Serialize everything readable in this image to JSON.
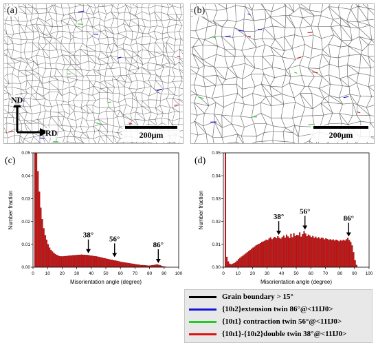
{
  "panels": {
    "a": {
      "label": "(a)",
      "scale": "200μm",
      "axis_nd": "ND",
      "axis_rd": "RD"
    },
    "b": {
      "label": "(b)",
      "scale": "200μm"
    },
    "c": {
      "label": "(c)"
    },
    "d": {
      "label": "(d)"
    }
  },
  "legend": {
    "items": [
      {
        "text": "Grain boundary > 15°",
        "color": "#000000"
      },
      {
        "text": "{10ı2}extension twin 86°@<11Ĳ0>",
        "color": "#1414d8"
      },
      {
        "text": "{10ı1} contraction twin 56°@<11Ĳ0>",
        "color": "#22cc22"
      },
      {
        "text": "{10ı1}-{10ı2}double twin 38°@<11Ĳ0>",
        "color": "#dd1111"
      }
    ]
  },
  "chart_data": [
    {
      "type": "bar",
      "panel": "(c)",
      "xlabel": "Misorientation angle (degree)",
      "ylabel": "Number fraction",
      "xlim": [
        0,
        100
      ],
      "ylim": [
        0,
        0.05
      ],
      "xticks": [
        0,
        10,
        20,
        30,
        40,
        50,
        60,
        70,
        80,
        90,
        100
      ],
      "yticks": [
        0.0,
        0.01,
        0.02,
        0.03,
        0.04,
        0.05
      ],
      "bar_color": "#cc1111",
      "annotations": [
        {
          "text": "38°",
          "x": 38,
          "y": 0.0055
        },
        {
          "text": "56°",
          "x": 56,
          "y": 0.0038
        },
        {
          "text": "86°",
          "x": 86,
          "y": 0.0012
        }
      ],
      "x": [
        2,
        3,
        4,
        5,
        6,
        7,
        8,
        9,
        10,
        11,
        12,
        13,
        14,
        15,
        16,
        17,
        18,
        19,
        20,
        21,
        22,
        23,
        24,
        25,
        26,
        27,
        28,
        29,
        30,
        31,
        32,
        33,
        34,
        35,
        36,
        37,
        38,
        39,
        40,
        41,
        42,
        43,
        44,
        45,
        46,
        47,
        48,
        49,
        50,
        51,
        52,
        53,
        54,
        55,
        56,
        57,
        58,
        59,
        60,
        61,
        62,
        63,
        64,
        65,
        66,
        67,
        68,
        69,
        70,
        71,
        72,
        73,
        74,
        75,
        76,
        77,
        78,
        79,
        80,
        81,
        82,
        83,
        84,
        85,
        86,
        87,
        88,
        89,
        90,
        91,
        92
      ],
      "values": [
        0.05,
        0.05,
        0.042,
        0.033,
        0.026,
        0.021,
        0.017,
        0.014,
        0.012,
        0.01,
        0.0085,
        0.0075,
        0.0068,
        0.0062,
        0.0057,
        0.0053,
        0.005,
        0.0048,
        0.0047,
        0.0047,
        0.0048,
        0.0048,
        0.0049,
        0.005,
        0.0051,
        0.0051,
        0.0052,
        0.0052,
        0.0053,
        0.0053,
        0.0054,
        0.0054,
        0.0055,
        0.0054,
        0.0054,
        0.0053,
        0.0053,
        0.0052,
        0.0051,
        0.005,
        0.0049,
        0.0048,
        0.0047,
        0.0046,
        0.0045,
        0.0043,
        0.0042,
        0.004,
        0.0039,
        0.0037,
        0.0036,
        0.0034,
        0.0033,
        0.0032,
        0.003,
        0.0029,
        0.0028,
        0.0026,
        0.0025,
        0.0023,
        0.0022,
        0.0021,
        0.002,
        0.0019,
        0.0018,
        0.0017,
        0.0016,
        0.0015,
        0.0014,
        0.0013,
        0.0012,
        0.0011,
        0.001,
        0.0009,
        0.0009,
        0.0008,
        0.0008,
        0.0007,
        0.0007,
        0.0007,
        0.0008,
        0.0009,
        0.001,
        0.0011,
        0.0012,
        0.001,
        0.0008,
        0.0005,
        0.0003,
        0.0002,
        0.0001
      ]
    },
    {
      "type": "bar",
      "panel": "(d)",
      "xlabel": "Misorientation angle (degree)",
      "ylabel": "Number fraction",
      "xlim": [
        0,
        100
      ],
      "ylim": [
        0,
        0.05
      ],
      "xticks": [
        0,
        10,
        20,
        30,
        40,
        50,
        60,
        70,
        80,
        90,
        100
      ],
      "yticks": [
        0.0,
        0.01,
        0.02,
        0.03,
        0.04,
        0.05
      ],
      "bar_color": "#cc1111",
      "annotations": [
        {
          "text": "38°",
          "x": 38,
          "y": 0.0135
        },
        {
          "text": "56°",
          "x": 56,
          "y": 0.0158
        },
        {
          "text": "86°",
          "x": 86,
          "y": 0.0128
        }
      ],
      "x": [
        2,
        3,
        4,
        5,
        6,
        7,
        8,
        9,
        10,
        11,
        12,
        13,
        14,
        15,
        16,
        17,
        18,
        19,
        20,
        21,
        22,
        23,
        24,
        25,
        26,
        27,
        28,
        29,
        30,
        31,
        32,
        33,
        34,
        35,
        36,
        37,
        38,
        39,
        40,
        41,
        42,
        43,
        44,
        45,
        46,
        47,
        48,
        49,
        50,
        51,
        52,
        53,
        54,
        55,
        56,
        57,
        58,
        59,
        60,
        61,
        62,
        63,
        64,
        65,
        66,
        67,
        68,
        69,
        70,
        71,
        72,
        73,
        74,
        75,
        76,
        77,
        78,
        79,
        80,
        81,
        82,
        83,
        84,
        85,
        86,
        87,
        88,
        89,
        90,
        91,
        92
      ],
      "values": [
        0.05,
        0.0045,
        0.0025,
        0.0015,
        0.0012,
        0.0015,
        0.0018,
        0.0022,
        0.0028,
        0.0035,
        0.004,
        0.0046,
        0.005,
        0.0055,
        0.006,
        0.0065,
        0.007,
        0.0075,
        0.008,
        0.0085,
        0.009,
        0.0095,
        0.0098,
        0.0102,
        0.0105,
        0.011,
        0.0112,
        0.0115,
        0.012,
        0.0118,
        0.0125,
        0.013,
        0.0122,
        0.0128,
        0.0132,
        0.0126,
        0.0135,
        0.0128,
        0.0124,
        0.0131,
        0.0138,
        0.0129,
        0.0142,
        0.0134,
        0.0127,
        0.0145,
        0.013,
        0.0148,
        0.0136,
        0.0141,
        0.0139,
        0.0152,
        0.0133,
        0.0144,
        0.0158,
        0.0147,
        0.0135,
        0.0142,
        0.0138,
        0.0131,
        0.0136,
        0.0128,
        0.0133,
        0.0126,
        0.0131,
        0.0124,
        0.0129,
        0.0127,
        0.0121,
        0.0126,
        0.0123,
        0.0119,
        0.0122,
        0.0118,
        0.0121,
        0.0116,
        0.012,
        0.0117,
        0.0113,
        0.0118,
        0.0115,
        0.0119,
        0.0116,
        0.0122,
        0.0128,
        0.0118,
        0.011,
        0.0095,
        0.0065,
        0.003,
        0.001
      ]
    }
  ]
}
